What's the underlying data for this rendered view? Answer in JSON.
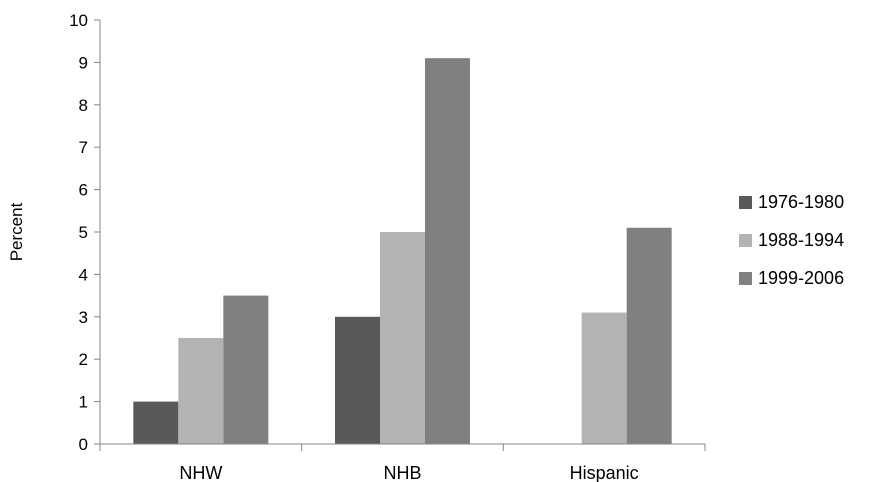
{
  "chart_data": {
    "type": "bar",
    "title": "",
    "xlabel": "",
    "ylabel": "Percent",
    "ylim": [
      0,
      10
    ],
    "yticks": [
      0,
      1,
      2,
      3,
      4,
      5,
      6,
      7,
      8,
      9,
      10
    ],
    "categories": [
      "NHW",
      "NHB",
      "Hispanic"
    ],
    "series": [
      {
        "name": "1976-1980",
        "color": "#595959",
        "values": [
          1,
          3,
          null
        ]
      },
      {
        "name": "1988-1994",
        "color": "#b3b3b3",
        "values": [
          2.5,
          5,
          3.1
        ]
      },
      {
        "name": "1999-2006",
        "color": "#808080",
        "values": [
          3.5,
          9.1,
          5.1
        ]
      }
    ],
    "grid": false,
    "legend_position": "right"
  }
}
